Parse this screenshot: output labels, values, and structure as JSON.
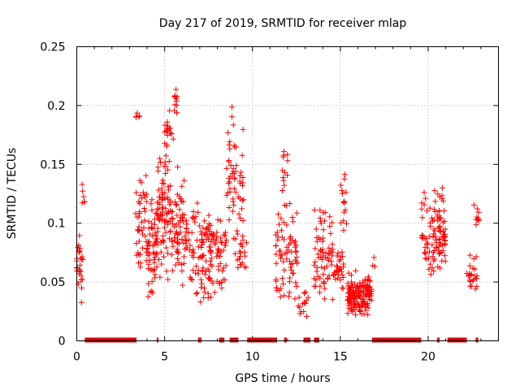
{
  "chart_data": {
    "type": "scatter",
    "title": "Day 217 of 2019, SRMTID for receiver mlap",
    "xlabel": "GPS time / hours",
    "ylabel": "SRMTID / TECUs",
    "xlim": [
      0,
      24
    ],
    "ylim": [
      0,
      0.25
    ],
    "x_ticks": [
      0,
      5,
      10,
      15,
      20
    ],
    "x_tick_labels": [
      "0",
      "5",
      "10",
      "15",
      "20"
    ],
    "y_ticks": [
      0,
      0.05,
      0.1,
      0.15,
      0.2,
      0.25
    ],
    "y_tick_labels": [
      "0",
      "0.05",
      "0.1",
      "0.15",
      "0.2",
      "0.25"
    ],
    "grid": true,
    "marker": "+",
    "color": "#ff0000",
    "clusters": [
      {
        "t0": 0.0,
        "t1": 0.35,
        "lo": 0.03,
        "hi": 0.095,
        "n": 28
      },
      {
        "t0": 0.3,
        "t1": 0.45,
        "lo": 0.11,
        "hi": 0.135,
        "n": 6
      },
      {
        "t0": 3.35,
        "t1": 3.6,
        "lo": 0.185,
        "hi": 0.195,
        "n": 5
      },
      {
        "t0": 3.35,
        "t1": 4.0,
        "lo": 0.05,
        "hi": 0.16,
        "n": 45
      },
      {
        "t0": 4.0,
        "t1": 4.6,
        "lo": 0.035,
        "hi": 0.13,
        "n": 60
      },
      {
        "t0": 4.6,
        "t1": 5.3,
        "lo": 0.045,
        "hi": 0.17,
        "n": 75
      },
      {
        "t0": 5.0,
        "t1": 5.5,
        "lo": 0.16,
        "hi": 0.2,
        "n": 18
      },
      {
        "t0": 5.5,
        "t1": 5.8,
        "lo": 0.19,
        "hi": 0.225,
        "n": 12
      },
      {
        "t0": 5.3,
        "t1": 6.3,
        "lo": 0.04,
        "hi": 0.15,
        "n": 80
      },
      {
        "t0": 6.3,
        "t1": 7.5,
        "lo": 0.025,
        "hi": 0.12,
        "n": 75
      },
      {
        "t0": 7.5,
        "t1": 8.5,
        "lo": 0.035,
        "hi": 0.115,
        "n": 70
      },
      {
        "t0": 8.5,
        "t1": 9.5,
        "lo": 0.07,
        "hi": 0.21,
        "n": 60
      },
      {
        "t0": 9.0,
        "t1": 9.7,
        "lo": 0.05,
        "hi": 0.095,
        "n": 20
      },
      {
        "t0": 11.3,
        "t1": 12.6,
        "lo": 0.03,
        "hi": 0.12,
        "n": 75
      },
      {
        "t0": 11.7,
        "t1": 12.0,
        "lo": 0.12,
        "hi": 0.165,
        "n": 12
      },
      {
        "t0": 12.6,
        "t1": 13.3,
        "lo": 0.015,
        "hi": 0.05,
        "n": 15
      },
      {
        "t0": 13.5,
        "t1": 14.6,
        "lo": 0.025,
        "hi": 0.12,
        "n": 70
      },
      {
        "t0": 14.6,
        "t1": 15.2,
        "lo": 0.04,
        "hi": 0.08,
        "n": 30
      },
      {
        "t0": 15.0,
        "t1": 15.4,
        "lo": 0.08,
        "hi": 0.15,
        "n": 15
      },
      {
        "t0": 15.4,
        "t1": 16.8,
        "lo": 0.02,
        "hi": 0.06,
        "n": 150
      },
      {
        "t0": 16.8,
        "t1": 17.0,
        "lo": 0.06,
        "hi": 0.075,
        "n": 3
      },
      {
        "t0": 19.6,
        "t1": 20.4,
        "lo": 0.045,
        "hi": 0.13,
        "n": 40
      },
      {
        "t0": 20.3,
        "t1": 21.0,
        "lo": 0.055,
        "hi": 0.135,
        "n": 70
      },
      {
        "t0": 22.2,
        "t1": 22.8,
        "lo": 0.035,
        "hi": 0.075,
        "n": 25
      },
      {
        "t0": 22.6,
        "t1": 22.9,
        "lo": 0.09,
        "hi": 0.125,
        "n": 10
      }
    ],
    "zero_segments": [
      [
        0.45,
        3.4
      ],
      [
        4.55,
        4.65
      ],
      [
        6.9,
        7.1
      ],
      [
        8.1,
        8.4
      ],
      [
        8.7,
        9.2
      ],
      [
        9.7,
        11.4
      ],
      [
        11.8,
        11.95
      ],
      [
        12.9,
        13.3
      ],
      [
        13.5,
        13.8
      ],
      [
        16.8,
        19.6
      ],
      [
        20.5,
        20.65
      ],
      [
        21.1,
        22.2
      ],
      [
        22.7,
        22.85
      ]
    ]
  }
}
